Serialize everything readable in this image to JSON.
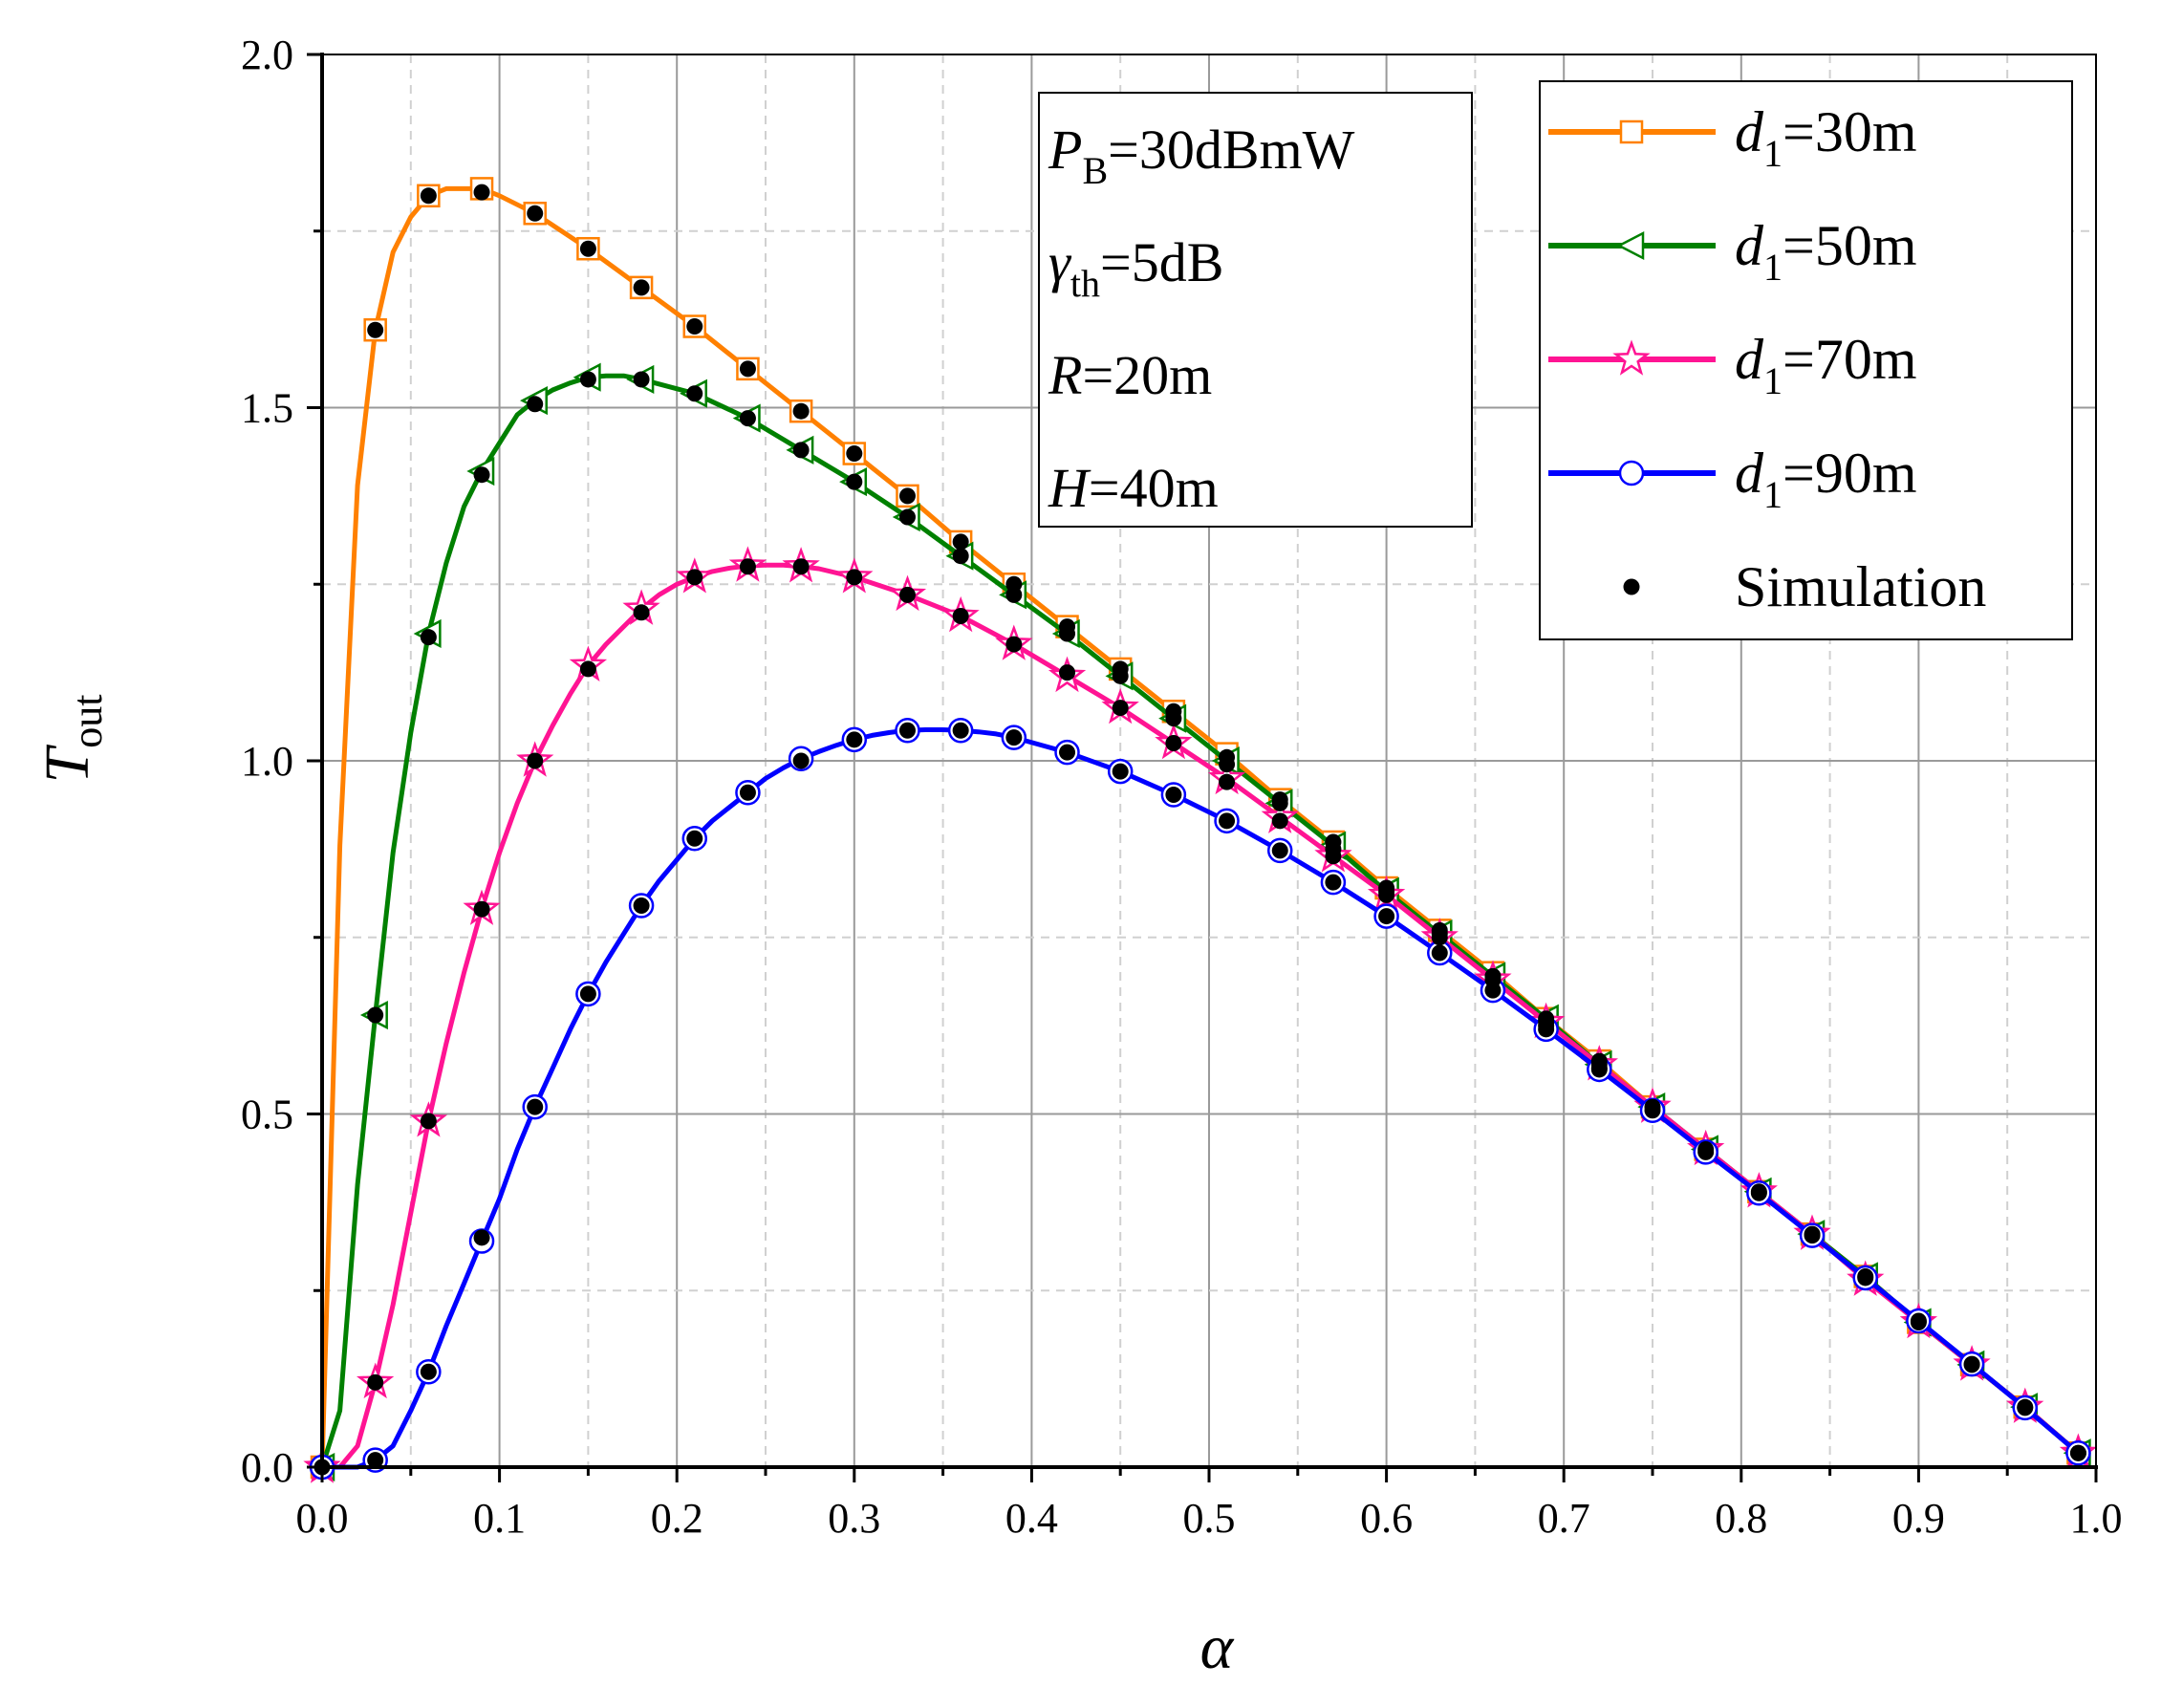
{
  "chart_data": {
    "type": "line",
    "xlabel": "α",
    "ylabel": {
      "main": "T",
      "sub": "out"
    },
    "xlim": [
      0.0,
      1.0
    ],
    "ylim": [
      0.0,
      2.0
    ],
    "xticks": [
      0.0,
      0.1,
      0.2,
      0.3,
      0.4,
      0.5,
      0.6,
      0.7,
      0.8,
      0.9,
      1.0
    ],
    "xtick_labels": [
      "0.0",
      "0.1",
      "0.2",
      "0.3",
      "0.4",
      "0.5",
      "0.6",
      "0.7",
      "0.8",
      "0.9",
      "1.0"
    ],
    "yticks": [
      0.0,
      0.5,
      1.0,
      1.5,
      2.0
    ],
    "ytick_labels": [
      "0.0",
      "0.5",
      "1.0",
      "1.5",
      "2.0"
    ],
    "grid": true,
    "legend_position": "top-right",
    "annotation": {
      "lines": [
        {
          "main": "P",
          "sub": "B",
          "rest": "=30dBmW"
        },
        {
          "main": "γ",
          "sub": "th",
          "rest": "=5dB"
        },
        {
          "main": "R",
          "sub": "",
          "rest": "=20m"
        },
        {
          "main": "H",
          "sub": "",
          "rest": "=40m"
        }
      ]
    },
    "series": [
      {
        "name": "d1=30m",
        "label": {
          "main": "d",
          "sub": "1",
          "rest": "=30m"
        },
        "color": "#FF8000",
        "marker": "square",
        "x": [
          0.0,
          0.01,
          0.02,
          0.03,
          0.04,
          0.05,
          0.06,
          0.07,
          0.08,
          0.09,
          0.1,
          0.12,
          0.15,
          0.18,
          0.21,
          0.24,
          0.27,
          0.3,
          0.33,
          0.36,
          0.39,
          0.42,
          0.45,
          0.48,
          0.51,
          0.54,
          0.57,
          0.6,
          0.63,
          0.66,
          0.69,
          0.72,
          0.75,
          0.78,
          0.81,
          0.84,
          0.87,
          0.9,
          0.93,
          0.96,
          0.99
        ],
        "y": [
          0.0,
          0.88,
          1.39,
          1.61,
          1.72,
          1.77,
          1.8,
          1.81,
          1.81,
          1.81,
          1.8,
          1.775,
          1.725,
          1.67,
          1.615,
          1.555,
          1.495,
          1.435,
          1.375,
          1.31,
          1.25,
          1.19,
          1.13,
          1.07,
          1.01,
          0.945,
          0.885,
          0.82,
          0.76,
          0.7,
          0.635,
          0.575,
          0.51,
          0.45,
          0.39,
          0.33,
          0.27,
          0.205,
          0.145,
          0.085,
          0.02
        ],
        "marker_x": [
          0.0,
          0.03,
          0.06,
          0.09,
          0.12,
          0.15,
          0.18,
          0.21,
          0.24,
          0.27,
          0.3,
          0.33,
          0.36,
          0.39,
          0.42,
          0.45,
          0.48,
          0.51,
          0.54,
          0.57,
          0.6,
          0.63,
          0.66,
          0.69,
          0.72,
          0.75,
          0.78,
          0.81,
          0.84,
          0.87,
          0.9,
          0.93,
          0.96,
          0.99
        ]
      },
      {
        "name": "d1=50m",
        "label": {
          "main": "d",
          "sub": "1",
          "rest": "=50m"
        },
        "color": "#008000",
        "marker": "triangle-left",
        "x": [
          0.0,
          0.01,
          0.02,
          0.03,
          0.04,
          0.05,
          0.06,
          0.07,
          0.08,
          0.09,
          0.1,
          0.11,
          0.12,
          0.13,
          0.14,
          0.15,
          0.16,
          0.17,
          0.18,
          0.21,
          0.24,
          0.27,
          0.3,
          0.33,
          0.36,
          0.39,
          0.42,
          0.45,
          0.48,
          0.51,
          0.54,
          0.57,
          0.6,
          0.63,
          0.66,
          0.69,
          0.72,
          0.75,
          0.78,
          0.81,
          0.84,
          0.87,
          0.9,
          0.93,
          0.96,
          0.99
        ],
        "y": [
          0.0,
          0.08,
          0.4,
          0.64,
          0.87,
          1.04,
          1.18,
          1.28,
          1.36,
          1.41,
          1.45,
          1.49,
          1.51,
          1.525,
          1.535,
          1.543,
          1.545,
          1.545,
          1.54,
          1.52,
          1.485,
          1.44,
          1.395,
          1.345,
          1.29,
          1.235,
          1.18,
          1.12,
          1.06,
          1.0,
          0.94,
          0.88,
          0.815,
          0.755,
          0.695,
          0.635,
          0.57,
          0.51,
          0.45,
          0.39,
          0.33,
          0.27,
          0.205,
          0.145,
          0.085,
          0.02
        ],
        "marker_x": [
          0.0,
          0.03,
          0.06,
          0.09,
          0.12,
          0.15,
          0.18,
          0.21,
          0.24,
          0.27,
          0.3,
          0.33,
          0.36,
          0.39,
          0.42,
          0.45,
          0.48,
          0.51,
          0.54,
          0.57,
          0.6,
          0.63,
          0.66,
          0.69,
          0.72,
          0.75,
          0.78,
          0.81,
          0.84,
          0.87,
          0.9,
          0.93,
          0.96,
          0.99
        ]
      },
      {
        "name": "d1=70m",
        "label": {
          "main": "d",
          "sub": "1",
          "rest": "=70m"
        },
        "color": "#FF1493",
        "marker": "star",
        "x": [
          0.0,
          0.01,
          0.02,
          0.03,
          0.04,
          0.05,
          0.06,
          0.07,
          0.08,
          0.09,
          0.1,
          0.11,
          0.12,
          0.13,
          0.14,
          0.15,
          0.16,
          0.17,
          0.18,
          0.19,
          0.2,
          0.21,
          0.22,
          0.23,
          0.24,
          0.25,
          0.26,
          0.27,
          0.28,
          0.3,
          0.33,
          0.36,
          0.39,
          0.42,
          0.45,
          0.48,
          0.51,
          0.54,
          0.57,
          0.6,
          0.63,
          0.66,
          0.69,
          0.72,
          0.75,
          0.78,
          0.81,
          0.84,
          0.87,
          0.9,
          0.93,
          0.96,
          0.99
        ],
        "y": [
          0.0,
          0.0,
          0.03,
          0.12,
          0.23,
          0.36,
          0.49,
          0.6,
          0.7,
          0.79,
          0.87,
          0.94,
          1.0,
          1.05,
          1.095,
          1.135,
          1.165,
          1.19,
          1.215,
          1.235,
          1.25,
          1.26,
          1.268,
          1.273,
          1.276,
          1.277,
          1.277,
          1.275,
          1.272,
          1.26,
          1.235,
          1.205,
          1.165,
          1.12,
          1.075,
          1.025,
          0.975,
          0.92,
          0.865,
          0.81,
          0.75,
          0.69,
          0.63,
          0.57,
          0.51,
          0.45,
          0.39,
          0.33,
          0.265,
          0.205,
          0.145,
          0.085,
          0.02
        ],
        "marker_x": [
          0.0,
          0.03,
          0.06,
          0.09,
          0.12,
          0.15,
          0.18,
          0.21,
          0.24,
          0.27,
          0.3,
          0.33,
          0.36,
          0.39,
          0.42,
          0.45,
          0.48,
          0.51,
          0.54,
          0.57,
          0.6,
          0.63,
          0.66,
          0.69,
          0.72,
          0.75,
          0.78,
          0.81,
          0.84,
          0.87,
          0.9,
          0.93,
          0.96,
          0.99
        ]
      },
      {
        "name": "d1=90m",
        "label": {
          "main": "d",
          "sub": "1",
          "rest": "=90m"
        },
        "color": "#0000FF",
        "marker": "circle",
        "x": [
          0.0,
          0.01,
          0.02,
          0.03,
          0.04,
          0.05,
          0.06,
          0.07,
          0.08,
          0.09,
          0.1,
          0.11,
          0.12,
          0.13,
          0.14,
          0.15,
          0.16,
          0.17,
          0.18,
          0.19,
          0.2,
          0.21,
          0.22,
          0.23,
          0.24,
          0.25,
          0.26,
          0.27,
          0.28,
          0.29,
          0.3,
          0.31,
          0.32,
          0.33,
          0.34,
          0.35,
          0.36,
          0.37,
          0.38,
          0.39,
          0.42,
          0.45,
          0.48,
          0.51,
          0.54,
          0.57,
          0.6,
          0.63,
          0.66,
          0.69,
          0.72,
          0.75,
          0.78,
          0.81,
          0.84,
          0.87,
          0.9,
          0.93,
          0.96,
          0.99
        ],
        "y": [
          0.0,
          0.0,
          0.0,
          0.01,
          0.03,
          0.08,
          0.135,
          0.2,
          0.26,
          0.32,
          0.38,
          0.45,
          0.51,
          0.565,
          0.62,
          0.67,
          0.715,
          0.755,
          0.795,
          0.83,
          0.86,
          0.89,
          0.915,
          0.935,
          0.955,
          0.975,
          0.99,
          1.003,
          1.013,
          1.022,
          1.03,
          1.036,
          1.04,
          1.043,
          1.044,
          1.044,
          1.043,
          1.041,
          1.038,
          1.033,
          1.012,
          0.985,
          0.952,
          0.915,
          0.873,
          0.828,
          0.78,
          0.728,
          0.675,
          0.62,
          0.563,
          0.505,
          0.446,
          0.388,
          0.328,
          0.268,
          0.207,
          0.146,
          0.084,
          0.02
        ],
        "marker_x": [
          0.0,
          0.03,
          0.06,
          0.09,
          0.12,
          0.15,
          0.18,
          0.21,
          0.24,
          0.27,
          0.3,
          0.33,
          0.36,
          0.39,
          0.42,
          0.45,
          0.48,
          0.51,
          0.54,
          0.57,
          0.6,
          0.63,
          0.66,
          0.69,
          0.72,
          0.75,
          0.78,
          0.81,
          0.84,
          0.87,
          0.9,
          0.93,
          0.96,
          0.99
        ]
      }
    ],
    "simulation": {
      "name": "Simulation",
      "color": "#000000",
      "marker": "filled-circle",
      "points": [
        [
          0.03,
          1.61
        ],
        [
          0.06,
          1.8
        ],
        [
          0.09,
          1.805
        ],
        [
          0.12,
          1.775
        ],
        [
          0.15,
          1.725
        ],
        [
          0.18,
          1.67
        ],
        [
          0.21,
          1.615
        ],
        [
          0.24,
          1.555
        ],
        [
          0.27,
          1.495
        ],
        [
          0.3,
          1.435
        ],
        [
          0.33,
          1.375
        ],
        [
          0.36,
          1.31
        ],
        [
          0.39,
          1.25
        ],
        [
          0.42,
          1.19
        ],
        [
          0.45,
          1.13
        ],
        [
          0.48,
          1.07
        ],
        [
          0.51,
          1.005
        ],
        [
          0.54,
          0.945
        ],
        [
          0.57,
          0.885
        ],
        [
          0.6,
          0.82
        ],
        [
          0.63,
          0.76
        ],
        [
          0.66,
          0.695
        ],
        [
          0.69,
          0.635
        ],
        [
          0.72,
          0.575
        ],
        [
          0.75,
          0.51
        ],
        [
          0.78,
          0.45
        ],
        [
          0.81,
          0.39
        ],
        [
          0.84,
          0.33
        ],
        [
          0.87,
          0.27
        ],
        [
          0.9,
          0.205
        ],
        [
          0.93,
          0.145
        ],
        [
          0.96,
          0.085
        ],
        [
          0.99,
          0.02
        ],
        [
          0.03,
          0.64
        ],
        [
          0.06,
          1.175
        ],
        [
          0.09,
          1.405
        ],
        [
          0.12,
          1.505
        ],
        [
          0.15,
          1.54
        ],
        [
          0.18,
          1.54
        ],
        [
          0.21,
          1.52
        ],
        [
          0.24,
          1.485
        ],
        [
          0.27,
          1.44
        ],
        [
          0.3,
          1.395
        ],
        [
          0.33,
          1.345
        ],
        [
          0.36,
          1.29
        ],
        [
          0.39,
          1.235
        ],
        [
          0.42,
          1.18
        ],
        [
          0.45,
          1.12
        ],
        [
          0.48,
          1.06
        ],
        [
          0.51,
          0.995
        ],
        [
          0.54,
          0.94
        ],
        [
          0.57,
          0.875
        ],
        [
          0.6,
          0.815
        ],
        [
          0.63,
          0.755
        ],
        [
          0.66,
          0.695
        ],
        [
          0.69,
          0.63
        ],
        [
          0.72,
          0.57
        ],
        [
          0.03,
          0.12
        ],
        [
          0.06,
          0.49
        ],
        [
          0.09,
          0.79
        ],
        [
          0.12,
          1.0
        ],
        [
          0.15,
          1.13
        ],
        [
          0.18,
          1.21
        ],
        [
          0.21,
          1.26
        ],
        [
          0.24,
          1.275
        ],
        [
          0.27,
          1.275
        ],
        [
          0.3,
          1.26
        ],
        [
          0.33,
          1.235
        ],
        [
          0.36,
          1.205
        ],
        [
          0.39,
          1.165
        ],
        [
          0.42,
          1.125
        ],
        [
          0.45,
          1.075
        ],
        [
          0.48,
          1.025
        ],
        [
          0.51,
          0.97
        ],
        [
          0.54,
          0.915
        ],
        [
          0.57,
          0.865
        ],
        [
          0.6,
          0.81
        ],
        [
          0.63,
          0.75
        ],
        [
          0.66,
          0.69
        ],
        [
          0.69,
          0.625
        ],
        [
          0.72,
          0.565
        ],
        [
          0.0,
          0.0
        ],
        [
          0.03,
          0.01
        ],
        [
          0.06,
          0.135
        ],
        [
          0.09,
          0.325
        ],
        [
          0.12,
          0.51
        ],
        [
          0.15,
          0.67
        ],
        [
          0.18,
          0.795
        ],
        [
          0.21,
          0.89
        ],
        [
          0.24,
          0.955
        ],
        [
          0.27,
          1.0
        ],
        [
          0.3,
          1.03
        ],
        [
          0.33,
          1.043
        ],
        [
          0.36,
          1.043
        ],
        [
          0.39,
          1.033
        ],
        [
          0.42,
          1.012
        ],
        [
          0.45,
          0.985
        ],
        [
          0.48,
          0.952
        ],
        [
          0.51,
          0.915
        ],
        [
          0.54,
          0.873
        ],
        [
          0.57,
          0.828
        ],
        [
          0.6,
          0.78
        ],
        [
          0.63,
          0.728
        ],
        [
          0.66,
          0.675
        ],
        [
          0.69,
          0.62
        ],
        [
          0.72,
          0.563
        ],
        [
          0.75,
          0.505
        ],
        [
          0.78,
          0.446
        ],
        [
          0.81,
          0.388
        ],
        [
          0.84,
          0.328
        ],
        [
          0.87,
          0.268
        ],
        [
          0.9,
          0.207
        ],
        [
          0.93,
          0.146
        ],
        [
          0.96,
          0.084
        ],
        [
          0.99,
          0.02
        ]
      ]
    }
  }
}
